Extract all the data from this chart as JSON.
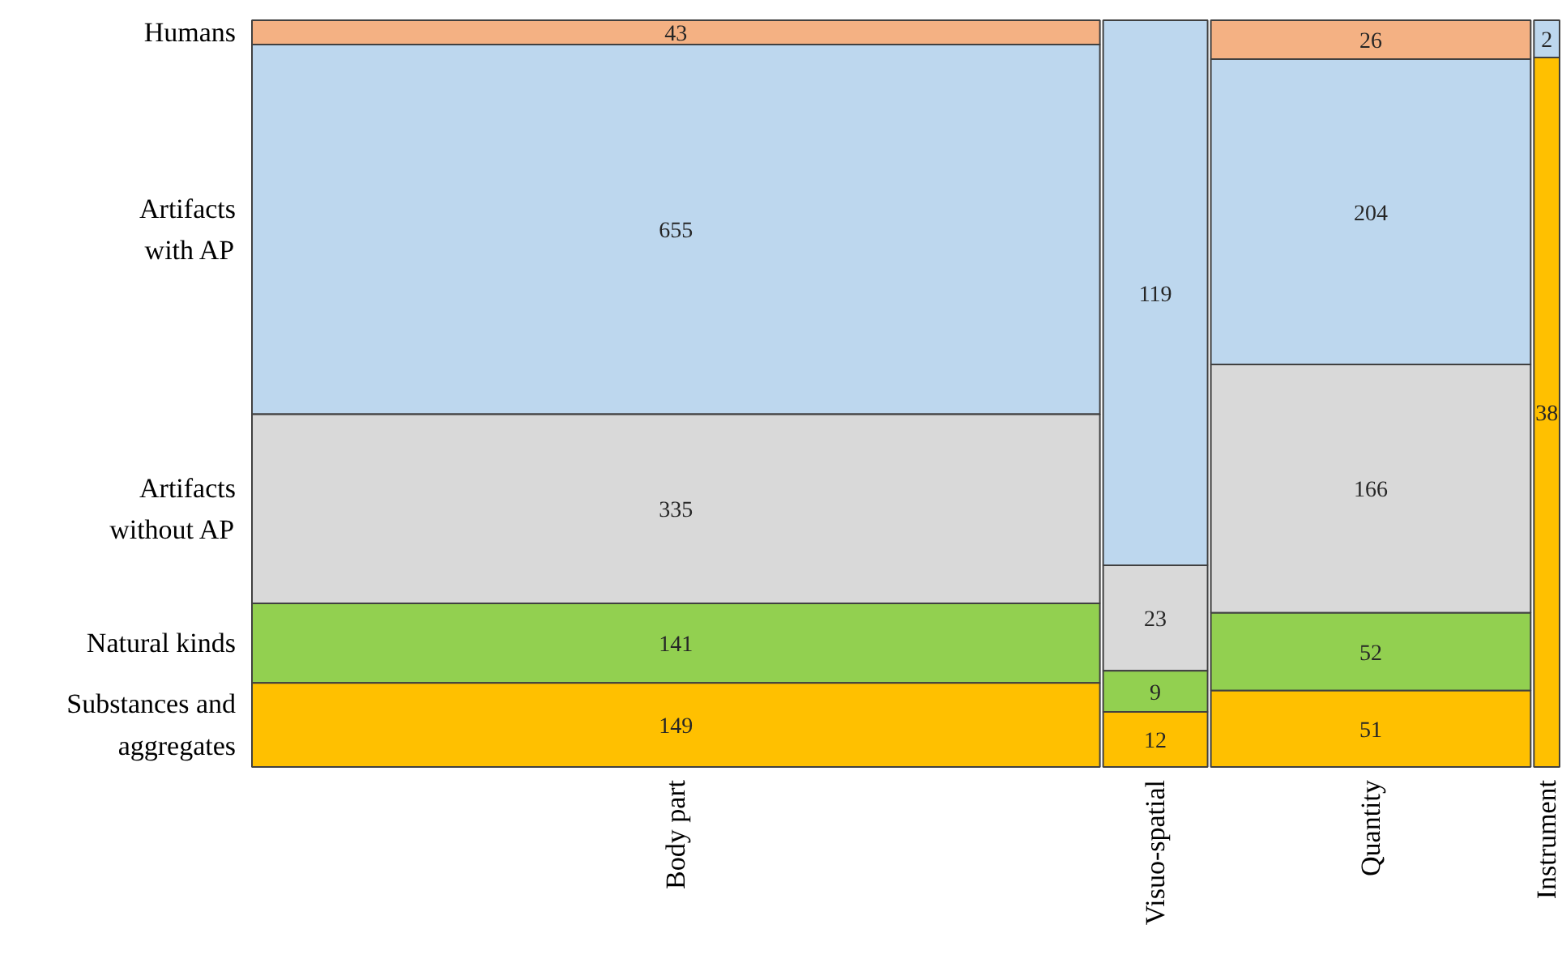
{
  "chart_data": {
    "type": "other",
    "categories": [
      "Body part",
      "Visuo-spatial",
      "Quantity",
      "Instrument"
    ],
    "series": [
      {
        "name": "Humans",
        "color": "#f4b183",
        "values": [
          43,
          null,
          26,
          null
        ]
      },
      {
        "name": "Artifacts\nwith AP",
        "color": "#bdd7ee",
        "values": [
          655,
          119,
          204,
          2
        ]
      },
      {
        "name": "Artifacts\nwithout AP",
        "color": "#d9d9d9",
        "values": [
          335,
          23,
          166,
          null
        ]
      },
      {
        "name": "Natural kinds",
        "color": "#92d050",
        "values": [
          141,
          9,
          52,
          null
        ]
      },
      {
        "name": "Substances and\naggregates",
        "color": "#ffc000",
        "values": [
          149,
          12,
          51,
          38
        ]
      }
    ],
    "data_labels": true
  }
}
